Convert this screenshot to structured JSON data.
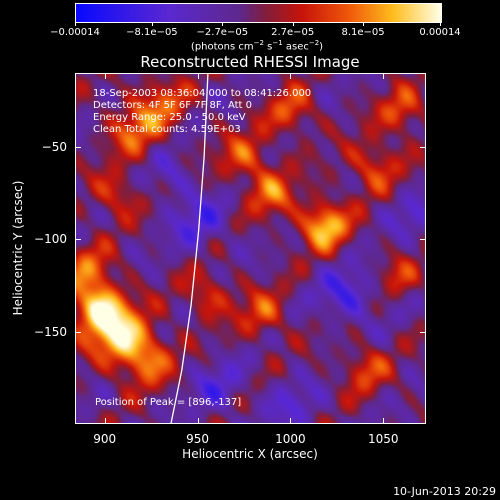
{
  "chart_data": {
    "type": "heatmap",
    "title": "Reconstructed RHESSI Image",
    "xlabel": "Heliocentric X (arcsec)",
    "ylabel": "Heliocentric Y (arcsec)",
    "xlim": [
      884,
      1073
    ],
    "ylim": [
      -200,
      -10
    ],
    "x_ticks": [
      900,
      950,
      1000,
      1050
    ],
    "y_ticks": [
      -50,
      -100,
      -150
    ],
    "x_tick_labels": [
      "900",
      "950",
      "1000",
      "1050"
    ],
    "y_tick_labels": [
      "−50",
      "−100",
      "−150"
    ],
    "colorbar": {
      "min": -0.00014,
      "max": 0.00014,
      "tick_values": [
        -0.00014,
        -8.1e-05,
        -2.7e-05,
        2.7e-05,
        8.1e-05,
        0.00014
      ],
      "tick_labels": [
        "−0.00014",
        "−8.1e−05",
        "−2.7e−05",
        "2.7e−05",
        "8.1e−05",
        "0.00014"
      ],
      "unit_text": "(photons cm",
      "unit_exp1": "−2",
      "unit_mid": " s",
      "unit_exp2": "−1",
      "unit_mid2": " asec",
      "unit_exp3": "−2",
      "unit_close": ")"
    },
    "annotations": [
      "18-Sep-2003 08:36:04.000 to 08:41:26.000",
      "Detectors: 4F 5F 6F 7F 8F, Att 0",
      "Energy Range: 25.0 - 50.0 keV",
      "Clean    Total counts: 4.59E+03"
    ],
    "peak_label": "Position of Peak = [896,-137]",
    "peak": [
      896,
      -137
    ],
    "limb_curve": [
      [
        935,
        -200
      ],
      [
        941,
        -170
      ],
      [
        946,
        -135
      ],
      [
        950,
        -95
      ],
      [
        953,
        -55
      ],
      [
        955,
        -10
      ]
    ],
    "blobs": [
      {
        "x": 896,
        "y": -137,
        "amp": 1.0,
        "s": 10
      },
      {
        "x": 908,
        "y": -152,
        "amp": 0.8,
        "s": 11
      },
      {
        "x": 922,
        "y": -165,
        "amp": 0.6,
        "s": 10
      },
      {
        "x": 890,
        "y": -115,
        "amp": 0.5,
        "s": 9
      },
      {
        "x": 1018,
        "y": -92,
        "amp": 0.9,
        "s": 9
      },
      {
        "x": 990,
        "y": -75,
        "amp": 0.55,
        "s": 9
      },
      {
        "x": 975,
        "y": -55,
        "amp": 0.5,
        "s": 10
      },
      {
        "x": 1045,
        "y": -60,
        "amp": 0.5,
        "s": 10
      },
      {
        "x": 1060,
        "y": -30,
        "amp": 0.5,
        "s": 9
      },
      {
        "x": 915,
        "y": -40,
        "amp": 0.55,
        "s": 10
      },
      {
        "x": 930,
        "y": -25,
        "amp": 0.5,
        "s": 10
      },
      {
        "x": 1000,
        "y": -30,
        "amp": 0.5,
        "s": 9
      },
      {
        "x": 985,
        "y": -140,
        "amp": 0.5,
        "s": 9
      },
      {
        "x": 1040,
        "y": -170,
        "amp": 0.45,
        "s": 9
      },
      {
        "x": 955,
        "y": -130,
        "amp": 0.45,
        "s": 9
      },
      {
        "x": 905,
        "y": -75,
        "amp": 0.45,
        "s": 9
      },
      {
        "x": 1060,
        "y": -120,
        "amp": 0.35,
        "s": 8
      },
      {
        "x": 950,
        "y": -90,
        "amp": -0.4,
        "s": 11
      },
      {
        "x": 1030,
        "y": -130,
        "amp": -0.5,
        "s": 10
      },
      {
        "x": 960,
        "y": -180,
        "amp": -0.35,
        "s": 10
      },
      {
        "x": 1000,
        "y": -190,
        "amp": -0.3,
        "s": 10
      },
      {
        "x": 935,
        "y": -65,
        "amp": -0.3,
        "s": 8
      },
      {
        "x": 1065,
        "y": -85,
        "amp": -0.3,
        "s": 9
      }
    ]
  },
  "footer": {
    "date": "10-Jun-2013 20:29"
  }
}
